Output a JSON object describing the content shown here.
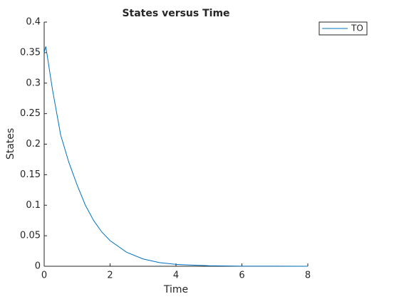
{
  "chart_data": {
    "type": "line",
    "title": "States versus Time",
    "xlabel": "Time",
    "ylabel": "States",
    "x": [
      0,
      0.05,
      0.25,
      0.5,
      0.75,
      1,
      1.25,
      1.5,
      1.75,
      2,
      2.5,
      3,
      3.5,
      4,
      5,
      6,
      7,
      8
    ],
    "series": [
      {
        "name": "TO",
        "color": "#0072bd",
        "values": [
          0.35,
          0.36,
          0.29,
          0.215,
          0.17,
          0.133,
          0.1,
          0.075,
          0.056,
          0.042,
          0.023,
          0.012,
          0.006,
          0.003,
          0.0008,
          0.0002,
          0.0001,
          0
        ]
      }
    ],
    "xlim": [
      0,
      8
    ],
    "xticks": [
      0,
      2,
      4,
      6,
      8
    ],
    "ylim": [
      0,
      0.4
    ],
    "yticks": [
      0,
      0.05,
      0.1,
      0.15,
      0.2,
      0.25,
      0.3,
      0.35,
      0.4
    ],
    "grid": false,
    "legend": "top-right-outside"
  }
}
